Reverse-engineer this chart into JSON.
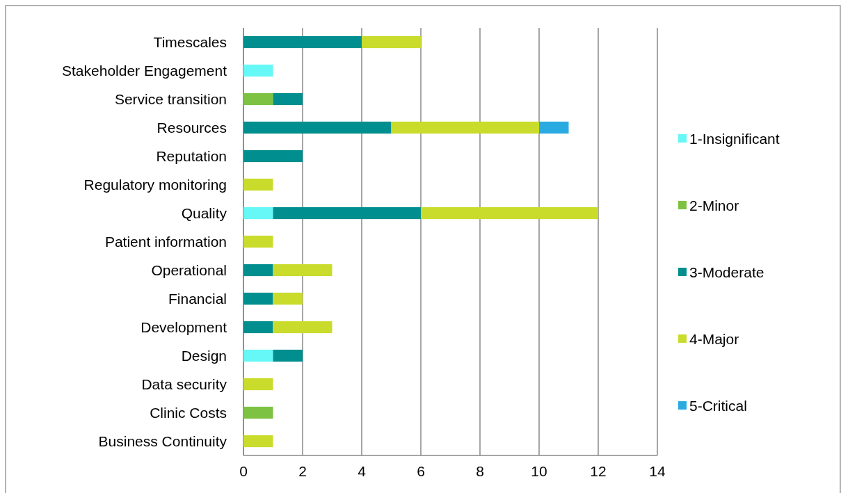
{
  "chart_data": {
    "type": "bar",
    "orientation": "horizontal",
    "stacked": true,
    "categories": [
      "Timescales",
      "Stakeholder Engagement",
      "Service transition",
      "Resources",
      "Reputation",
      "Regulatory monitoring",
      "Quality",
      "Patient information",
      "Operational",
      "Financial",
      "Development",
      "Design",
      "Data security",
      "Clinic Costs",
      "Business Continuity"
    ],
    "series": [
      {
        "name": "1-Insignificant",
        "color": "#66f7f7",
        "values": [
          null,
          1,
          null,
          null,
          null,
          null,
          1,
          null,
          null,
          null,
          null,
          1,
          null,
          null,
          null
        ]
      },
      {
        "name": "2-Minor",
        "color": "#7dc242",
        "values": [
          null,
          null,
          1,
          null,
          null,
          null,
          null,
          null,
          null,
          null,
          null,
          null,
          null,
          1,
          null
        ]
      },
      {
        "name": "3-Moderate",
        "color": "#008e8e",
        "values": [
          4,
          null,
          1,
          5,
          2,
          null,
          5,
          null,
          1,
          1,
          1,
          1,
          null,
          null,
          null
        ]
      },
      {
        "name": "4-Major",
        "color": "#c9dc2c",
        "values": [
          2,
          null,
          null,
          5,
          null,
          1,
          6,
          1,
          2,
          1,
          2,
          null,
          1,
          null,
          1
        ]
      },
      {
        "name": "5-Critical",
        "color": "#29abe2",
        "values": [
          null,
          null,
          null,
          1,
          null,
          null,
          null,
          null,
          null,
          null,
          null,
          null,
          null,
          null,
          null
        ]
      }
    ],
    "xlim": [
      0,
      14
    ],
    "xticks": [
      0,
      2,
      4,
      6,
      8,
      10,
      12,
      14
    ],
    "grid": "x",
    "legend": "right"
  }
}
